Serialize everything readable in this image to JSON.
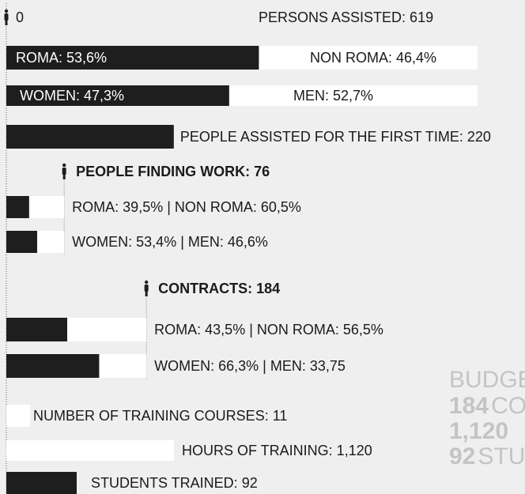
{
  "header": {
    "start_label": "0",
    "title": "PERSONS ASSISTED: 619",
    "total": 619
  },
  "assisted_split": [
    {
      "left": {
        "label": "ROMA: 53,6%",
        "value": 53.6
      },
      "right": {
        "label": "NON ROMA: 46,4%",
        "value": 46.4
      }
    },
    {
      "left": {
        "label": "WOMEN: 47,3%",
        "value": 47.3
      },
      "right": {
        "label": "MEN: 52,7%",
        "value": 52.7
      }
    }
  ],
  "first_time": {
    "label": "PEOPLE ASSISTED FOR THE FIRST TIME: 220",
    "value": 220
  },
  "sections": [
    {
      "title": "PEOPLE FINDING WORK: 76",
      "count": 76,
      "rows": [
        {
          "label": "ROMA: 39,5% | NON ROMA: 60,5%",
          "values": [
            39.5,
            60.5
          ]
        },
        {
          "label": "WOMEN: 53,4% | MEN: 46,6%",
          "values": [
            53.4,
            46.6
          ]
        }
      ]
    },
    {
      "title": "CONTRACTS: 184",
      "count": 184,
      "rows": [
        {
          "label": "ROMA: 43,5% | NON ROMA: 56,5%",
          "values": [
            43.5,
            56.5
          ]
        },
        {
          "label": "WOMEN: 66,3% | MEN: 33,75",
          "values": [
            66.3,
            33.75
          ]
        }
      ]
    }
  ],
  "training": [
    {
      "label": "NUMBER OF TRAINING COURSES: 11",
      "value": 11
    },
    {
      "label": "HOURS OF TRAINING: 1,120",
      "value": 1120
    },
    {
      "label": "STUDENTS TRAINED: 92",
      "value": 92
    }
  ],
  "budget": {
    "title": "BUDGE",
    "lines": [
      [
        "184",
        "CO"
      ],
      [
        "1,120",
        ""
      ],
      [
        "92",
        "STU"
      ]
    ]
  }
}
